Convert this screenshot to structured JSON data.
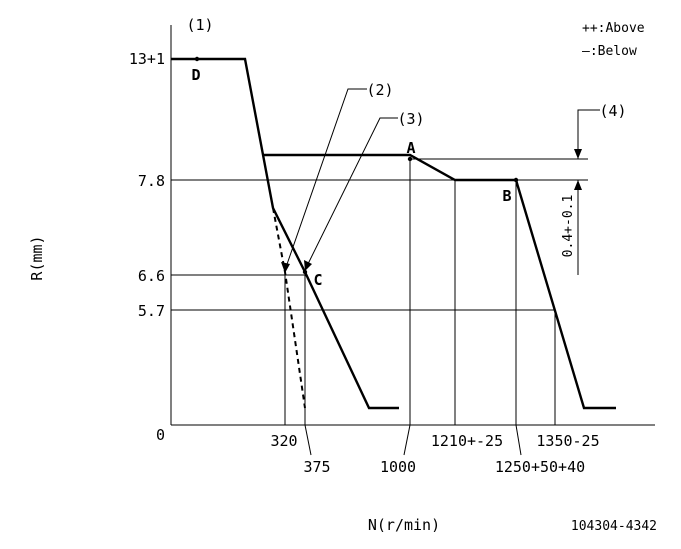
{
  "legend": {
    "above": "++:Above",
    "below": "—:Below"
  },
  "axes": {
    "y_label": "R(mm)",
    "x_label": "N(r/min)",
    "y_ticks": [
      "13+1",
      "7.8",
      "6.6",
      "5.7",
      "0"
    ],
    "x_ticks": [
      "320",
      "375",
      "1000",
      "1210+-25",
      "1250+50+40",
      "1350-25"
    ]
  },
  "callouts": {
    "c1": "(1)",
    "c2": "(2)",
    "c3": "(3)",
    "c4": "(4)",
    "dim": "0.4+-0.1"
  },
  "points": {
    "A": "A",
    "B": "B",
    "C": "C",
    "D": "D"
  },
  "doc_id": "104304-4342"
}
